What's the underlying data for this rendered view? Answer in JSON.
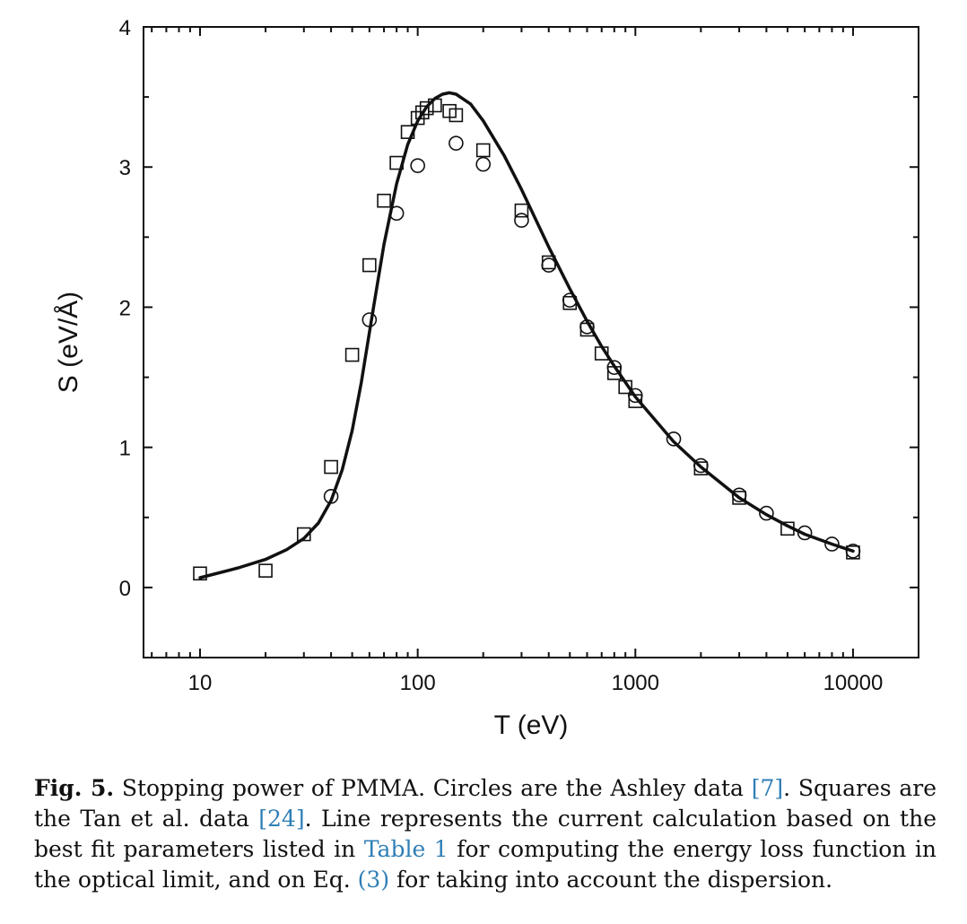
{
  "chart_data": {
    "type": "scatter",
    "xlabel": "T (eV)",
    "ylabel": "S (eV/Å)",
    "xscale": "log",
    "xlim": [
      5.5,
      20000
    ],
    "ylim": [
      -0.5,
      4
    ],
    "x_ticks": [
      {
        "value": 10,
        "label": "10"
      },
      {
        "value": 100,
        "label": "100"
      },
      {
        "value": 1000,
        "label": "1000"
      },
      {
        "value": 10000,
        "label": "10000"
      }
    ],
    "y_ticks": [
      {
        "value": 0,
        "label": "0"
      },
      {
        "value": 1,
        "label": "1"
      },
      {
        "value": 2,
        "label": "2"
      },
      {
        "value": 3,
        "label": "3"
      },
      {
        "value": 4,
        "label": "4"
      }
    ],
    "grid": false,
    "legend": "none",
    "series": [
      {
        "marker": "circle",
        "points": [
          [
            40,
            0.65
          ],
          [
            60,
            1.91
          ],
          [
            80,
            2.67
          ],
          [
            100,
            3.01
          ],
          [
            150,
            3.17
          ],
          [
            200,
            3.02
          ],
          [
            300,
            2.62
          ],
          [
            400,
            2.3
          ],
          [
            500,
            2.05
          ],
          [
            600,
            1.86
          ],
          [
            800,
            1.57
          ],
          [
            1000,
            1.37
          ],
          [
            1500,
            1.06
          ],
          [
            2000,
            0.87
          ],
          [
            3000,
            0.66
          ],
          [
            4000,
            0.53
          ],
          [
            6000,
            0.39
          ],
          [
            8000,
            0.31
          ],
          [
            10000,
            0.26
          ]
        ]
      },
      {
        "marker": "square",
        "points": [
          [
            10,
            0.1
          ],
          [
            20,
            0.12
          ],
          [
            30,
            0.38
          ],
          [
            40,
            0.86
          ],
          [
            50,
            1.66
          ],
          [
            60,
            2.3
          ],
          [
            70,
            2.76
          ],
          [
            80,
            3.03
          ],
          [
            90,
            3.25
          ],
          [
            100,
            3.35
          ],
          [
            105,
            3.39
          ],
          [
            110,
            3.42
          ],
          [
            120,
            3.44
          ],
          [
            140,
            3.4
          ],
          [
            150,
            3.37
          ],
          [
            200,
            3.12
          ],
          [
            300,
            2.69
          ],
          [
            400,
            2.32
          ],
          [
            500,
            2.03
          ],
          [
            600,
            1.84
          ],
          [
            700,
            1.67
          ],
          [
            800,
            1.53
          ],
          [
            900,
            1.43
          ],
          [
            1000,
            1.33
          ],
          [
            2000,
            0.85
          ],
          [
            3000,
            0.64
          ],
          [
            5000,
            0.42
          ],
          [
            10000,
            0.25
          ]
        ]
      },
      {
        "marker": "line",
        "points": [
          [
            10,
            0.07
          ],
          [
            15,
            0.14
          ],
          [
            20,
            0.2
          ],
          [
            25,
            0.27
          ],
          [
            30,
            0.35
          ],
          [
            35,
            0.46
          ],
          [
            40,
            0.62
          ],
          [
            45,
            0.84
          ],
          [
            50,
            1.12
          ],
          [
            55,
            1.46
          ],
          [
            60,
            1.82
          ],
          [
            65,
            2.15
          ],
          [
            70,
            2.45
          ],
          [
            80,
            2.88
          ],
          [
            90,
            3.16
          ],
          [
            100,
            3.33
          ],
          [
            110,
            3.43
          ],
          [
            120,
            3.49
          ],
          [
            130,
            3.52
          ],
          [
            140,
            3.53
          ],
          [
            150,
            3.52
          ],
          [
            175,
            3.45
          ],
          [
            200,
            3.33
          ],
          [
            250,
            3.08
          ],
          [
            300,
            2.84
          ],
          [
            400,
            2.43
          ],
          [
            500,
            2.13
          ],
          [
            600,
            1.9
          ],
          [
            700,
            1.72
          ],
          [
            800,
            1.58
          ],
          [
            1000,
            1.36
          ],
          [
            1500,
            1.04
          ],
          [
            2000,
            0.86
          ],
          [
            3000,
            0.64
          ],
          [
            4000,
            0.52
          ],
          [
            5000,
            0.44
          ],
          [
            6000,
            0.38
          ],
          [
            8000,
            0.31
          ],
          [
            10000,
            0.26
          ]
        ]
      }
    ]
  },
  "caption": {
    "label": "Fig. 5.",
    "t1": " Stopping power of PMMA. Circles are the Ashley data ",
    "r1": "[7]",
    "t2": ". Squares are the Tan et al. data ",
    "r2": "[24]",
    "t3": ". Line represents the current calculation based on the best fit parameters listed in ",
    "r3": "Table 1",
    "t4": " for computing the energy loss function in the optical limit, and on Eq. ",
    "r4": "(3)",
    "t5": " for taking into account the dispersion."
  },
  "colors": {
    "ink": "#111111",
    "link": "#2f7fb6"
  }
}
